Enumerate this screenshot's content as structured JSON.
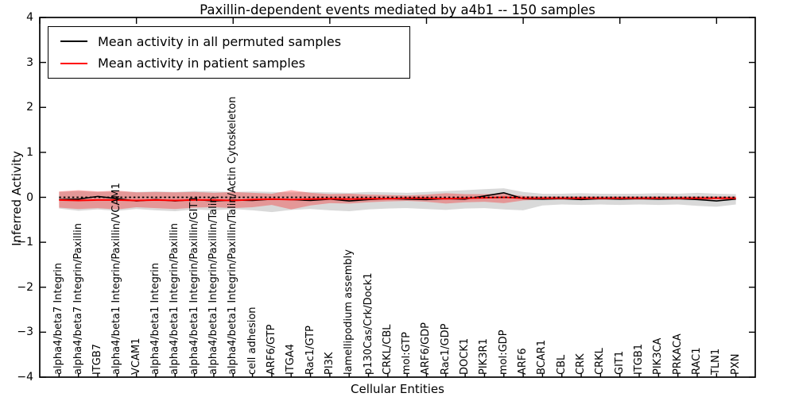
{
  "chart_data": {
    "type": "line",
    "title": "Paxillin-dependent events mediated by a4b1 -- 150 samples",
    "xlabel": "Cellular Entities",
    "ylabel": "Inferred Activity",
    "ylim": [
      -4,
      4
    ],
    "xlim": [
      0,
      37
    ],
    "grid": false,
    "frame_color": "#000000",
    "legend": {
      "position": "upper left",
      "items": [
        {
          "label": "Mean activity in all permuted samples",
          "color": "#000000"
        },
        {
          "label": "Mean activity in patient samples",
          "color": "#ff0000"
        }
      ]
    },
    "yticks": [
      {
        "value": 4,
        "label": "4"
      },
      {
        "value": 3,
        "label": "3"
      },
      {
        "value": 2,
        "label": "2"
      },
      {
        "value": 1,
        "label": "1"
      },
      {
        "value": 0,
        "label": "0"
      },
      {
        "value": -1,
        "label": "−1"
      },
      {
        "value": -2,
        "label": "−2"
      },
      {
        "value": -3,
        "label": "−3"
      },
      {
        "value": -4,
        "label": "−4"
      }
    ],
    "top_xticks": [
      0,
      5,
      10,
      15,
      20,
      25,
      30,
      35
    ],
    "categories": [
      "alpha4/beta7 Integrin",
      "alpha4/beta7 Integrin/Paxillin",
      "ITGB7",
      "alpha4/beta1 Integrin/Paxillin/VCAM1",
      "VCAM1",
      "alpha4/beta1 Integrin",
      "alpha4/beta1 Integrin/Paxillin",
      "alpha4/beta1 Integrin/Paxillin/GIT1",
      "alpha4/beta1 Integrin/Paxillin/Talin",
      "alpha4/beta1 Integrin/Paxillin/Talin/Actin Cytoskeleton",
      "cell adhesion",
      "ARF6/GTP",
      "ITGA4",
      "Rac1/GTP",
      "PI3K",
      "lamellipodium assembly",
      "p130Cas/Crk/Dock1",
      "CRKL/CBL",
      "mol:GTP",
      "ARF6/GDP",
      "Rac1/GDP",
      "DOCK1",
      "PIK3R1",
      "mol:GDP",
      "ARF6",
      "BCAR1",
      "CBL",
      "CRK",
      "CRKL",
      "GIT1",
      "ITGB1",
      "PIK3CA",
      "PRKACA",
      "RAC1",
      "TLN1",
      "PXN"
    ],
    "series": [
      {
        "name": "Mean activity in all permuted samples",
        "color": "#000000",
        "linestyle": "solid",
        "width": 1.6,
        "values": [
          -0.05,
          -0.04,
          0.02,
          -0.03,
          -0.08,
          -0.05,
          -0.08,
          -0.05,
          -0.08,
          -0.06,
          -0.07,
          -0.04,
          -0.05,
          -0.07,
          -0.04,
          -0.08,
          -0.05,
          -0.03,
          -0.04,
          -0.05,
          -0.03,
          -0.04,
          0.03,
          0.1,
          -0.03,
          -0.04,
          -0.03,
          -0.05,
          -0.03,
          -0.04,
          -0.03,
          -0.04,
          -0.03,
          -0.05,
          -0.08,
          -0.04
        ]
      },
      {
        "name": "Mean activity in patient samples",
        "color": "#ff0000",
        "linestyle": "solid",
        "width": 2.0,
        "values": [
          -0.06,
          -0.07,
          -0.06,
          -0.06,
          -0.07,
          -0.06,
          -0.07,
          -0.06,
          -0.06,
          -0.07,
          -0.05,
          -0.04,
          -0.05,
          -0.04,
          -0.03,
          -0.04,
          -0.03,
          -0.03,
          -0.02,
          -0.02,
          -0.03,
          -0.02,
          -0.01,
          0.0,
          -0.02,
          -0.02,
          -0.02,
          -0.02,
          -0.02,
          -0.02,
          -0.02,
          -0.02,
          -0.02,
          -0.02,
          -0.02,
          -0.02
        ]
      },
      {
        "name": "zero reference",
        "color": "#000000",
        "linestyle": "dotted",
        "width": 1.8,
        "values": [
          0,
          0,
          0,
          0,
          0,
          0,
          0,
          0,
          0,
          0,
          0,
          0,
          0,
          0,
          0,
          0,
          0,
          0,
          0,
          0,
          0,
          0,
          0,
          0,
          0,
          0,
          0,
          0,
          0,
          0,
          0,
          0,
          0,
          0,
          0,
          0
        ]
      }
    ],
    "bands": [
      {
        "name": "permuted samples range",
        "color": "#888888",
        "opacity": 0.32,
        "upper": [
          0.12,
          0.14,
          0.12,
          0.13,
          0.12,
          0.13,
          0.12,
          0.14,
          0.13,
          0.12,
          0.13,
          0.12,
          0.11,
          0.12,
          0.11,
          0.1,
          0.12,
          0.11,
          0.1,
          0.12,
          0.14,
          0.16,
          0.18,
          0.2,
          0.12,
          0.08,
          0.08,
          0.09,
          0.08,
          0.08,
          0.08,
          0.09,
          0.08,
          0.1,
          0.08,
          0.07
        ],
        "lower": [
          -0.25,
          -0.3,
          -0.27,
          -0.3,
          -0.26,
          -0.29,
          -0.31,
          -0.27,
          -0.29,
          -0.26,
          -0.29,
          -0.33,
          -0.28,
          -0.26,
          -0.29,
          -0.31,
          -0.27,
          -0.25,
          -0.24,
          -0.26,
          -0.28,
          -0.25,
          -0.24,
          -0.27,
          -0.29,
          -0.18,
          -0.16,
          -0.17,
          -0.16,
          -0.17,
          -0.16,
          -0.17,
          -0.16,
          -0.19,
          -0.21,
          -0.16
        ]
      },
      {
        "name": "patient samples range",
        "color": "#ff0000",
        "opacity": 0.3,
        "upper": [
          0.13,
          0.16,
          0.13,
          0.15,
          0.11,
          0.12,
          0.11,
          0.12,
          0.1,
          0.12,
          0.1,
          0.08,
          0.16,
          0.1,
          0.07,
          0.08,
          0.06,
          0.05,
          0.04,
          0.06,
          0.09,
          0.07,
          0.07,
          0.08,
          0.03,
          0.02,
          0.02,
          0.02,
          0.02,
          0.02,
          0.02,
          0.02,
          0.02,
          0.02,
          0.02,
          0.02
        ],
        "lower": [
          -0.23,
          -0.26,
          -0.24,
          -0.27,
          -0.22,
          -0.24,
          -0.26,
          -0.23,
          -0.22,
          -0.24,
          -0.22,
          -0.17,
          -0.27,
          -0.18,
          -0.13,
          -0.14,
          -0.11,
          -0.09,
          -0.08,
          -0.1,
          -0.14,
          -0.11,
          -0.1,
          -0.13,
          -0.07,
          -0.05,
          -0.05,
          -0.05,
          -0.05,
          -0.05,
          -0.05,
          -0.05,
          -0.05,
          -0.06,
          -0.05,
          -0.06
        ]
      }
    ]
  }
}
